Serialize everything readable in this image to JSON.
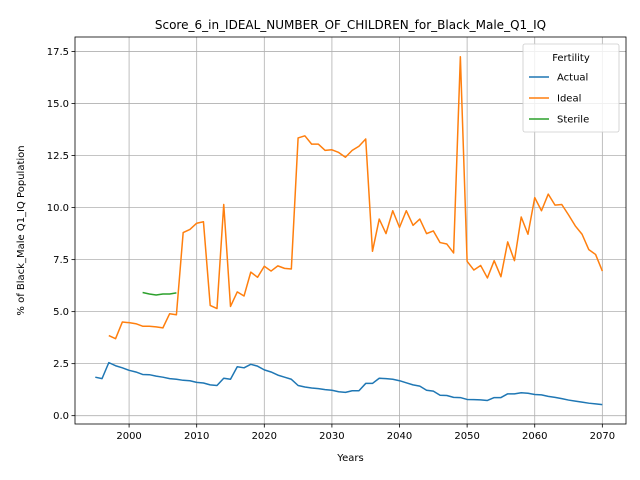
{
  "chart_data": {
    "type": "line",
    "title": "Score_6_in_IDEAL_NUMBER_OF_CHILDREN_for_Black_Male_Q1_IQ",
    "xlabel": "Years",
    "ylabel": "% of Black_Male Q1_IQ Population",
    "xlim": [
      1992,
      2073.5
    ],
    "ylim": [
      -0.4,
      18.2
    ],
    "xticks": [
      2000,
      2010,
      2020,
      2030,
      2040,
      2050,
      2060,
      2070
    ],
    "yticks": [
      0.0,
      2.5,
      5.0,
      7.5,
      10.0,
      12.5,
      15.0,
      17.5
    ],
    "xtick_labels": [
      "2000",
      "2010",
      "2020",
      "2030",
      "2040",
      "2050",
      "2060",
      "2070"
    ],
    "ytick_labels": [
      "0.0",
      "2.5",
      "5.0",
      "7.5",
      "10.0",
      "12.5",
      "15.0",
      "17.5"
    ],
    "grid": true,
    "legend": {
      "title": "Fertility",
      "placement": "top-right"
    },
    "series": [
      {
        "name": "Actual",
        "color": "#1f77b4",
        "points": [
          [
            1995,
            1.85
          ],
          [
            1996,
            1.78
          ],
          [
            1997,
            2.55
          ],
          [
            1998,
            2.4
          ],
          [
            1999,
            2.3
          ],
          [
            2000,
            2.18
          ],
          [
            2001,
            2.1
          ],
          [
            2002,
            1.98
          ],
          [
            2003,
            1.97
          ],
          [
            2004,
            1.9
          ],
          [
            2005,
            1.85
          ],
          [
            2006,
            1.78
          ],
          [
            2007,
            1.75
          ],
          [
            2008,
            1.7
          ],
          [
            2009,
            1.68
          ],
          [
            2010,
            1.6
          ],
          [
            2011,
            1.57
          ],
          [
            2012,
            1.48
          ],
          [
            2013,
            1.45
          ],
          [
            2014,
            1.8
          ],
          [
            2015,
            1.75
          ],
          [
            2016,
            2.35
          ],
          [
            2017,
            2.3
          ],
          [
            2018,
            2.47
          ],
          [
            2019,
            2.38
          ],
          [
            2020,
            2.2
          ],
          [
            2021,
            2.1
          ],
          [
            2022,
            1.95
          ],
          [
            2023,
            1.85
          ],
          [
            2024,
            1.75
          ],
          [
            2025,
            1.45
          ],
          [
            2026,
            1.38
          ],
          [
            2027,
            1.33
          ],
          [
            2028,
            1.3
          ],
          [
            2029,
            1.25
          ],
          [
            2030,
            1.22
          ],
          [
            2031,
            1.15
          ],
          [
            2032,
            1.12
          ],
          [
            2033,
            1.2
          ],
          [
            2034,
            1.2
          ],
          [
            2035,
            1.55
          ],
          [
            2036,
            1.55
          ],
          [
            2037,
            1.8
          ],
          [
            2038,
            1.78
          ],
          [
            2039,
            1.75
          ],
          [
            2040,
            1.68
          ],
          [
            2041,
            1.58
          ],
          [
            2042,
            1.48
          ],
          [
            2043,
            1.42
          ],
          [
            2044,
            1.22
          ],
          [
            2045,
            1.18
          ],
          [
            2046,
            0.98
          ],
          [
            2047,
            0.97
          ],
          [
            2048,
            0.88
          ],
          [
            2049,
            0.87
          ],
          [
            2050,
            0.78
          ],
          [
            2051,
            0.77
          ],
          [
            2052,
            0.76
          ],
          [
            2053,
            0.73
          ],
          [
            2054,
            0.87
          ],
          [
            2055,
            0.87
          ],
          [
            2056,
            1.05
          ],
          [
            2057,
            1.05
          ],
          [
            2058,
            1.1
          ],
          [
            2059,
            1.08
          ],
          [
            2060,
            1.02
          ],
          [
            2061,
            1.0
          ],
          [
            2062,
            0.93
          ],
          [
            2063,
            0.88
          ],
          [
            2064,
            0.82
          ],
          [
            2065,
            0.75
          ],
          [
            2066,
            0.7
          ],
          [
            2067,
            0.65
          ],
          [
            2068,
            0.6
          ],
          [
            2069,
            0.57
          ],
          [
            2070,
            0.53
          ]
        ]
      },
      {
        "name": "Ideal",
        "color": "#ff7f0e",
        "points": [
          [
            1997,
            3.85
          ],
          [
            1998,
            3.7
          ],
          [
            1999,
            4.5
          ],
          [
            2000,
            4.47
          ],
          [
            2001,
            4.42
          ],
          [
            2002,
            4.3
          ],
          [
            2003,
            4.3
          ],
          [
            2004,
            4.27
          ],
          [
            2005,
            4.22
          ],
          [
            2006,
            4.9
          ],
          [
            2007,
            4.85
          ],
          [
            2008,
            8.8
          ],
          [
            2009,
            8.95
          ],
          [
            2010,
            9.25
          ],
          [
            2011,
            9.32
          ],
          [
            2012,
            5.3
          ],
          [
            2013,
            5.15
          ],
          [
            2014,
            10.15
          ],
          [
            2015,
            5.25
          ],
          [
            2016,
            5.95
          ],
          [
            2017,
            5.75
          ],
          [
            2018,
            6.9
          ],
          [
            2019,
            6.65
          ],
          [
            2020,
            7.18
          ],
          [
            2021,
            6.95
          ],
          [
            2022,
            7.2
          ],
          [
            2023,
            7.08
          ],
          [
            2024,
            7.05
          ],
          [
            2025,
            13.35
          ],
          [
            2026,
            13.45
          ],
          [
            2027,
            13.05
          ],
          [
            2028,
            13.05
          ],
          [
            2029,
            12.75
          ],
          [
            2030,
            12.78
          ],
          [
            2031,
            12.65
          ],
          [
            2032,
            12.42
          ],
          [
            2033,
            12.75
          ],
          [
            2034,
            12.95
          ],
          [
            2035,
            13.3
          ],
          [
            2036,
            7.9
          ],
          [
            2037,
            9.45
          ],
          [
            2038,
            8.75
          ],
          [
            2039,
            9.85
          ],
          [
            2040,
            9.05
          ],
          [
            2041,
            9.85
          ],
          [
            2042,
            9.15
          ],
          [
            2043,
            9.45
          ],
          [
            2044,
            8.75
          ],
          [
            2045,
            8.88
          ],
          [
            2046,
            8.32
          ],
          [
            2047,
            8.25
          ],
          [
            2048,
            7.82
          ],
          [
            2049,
            17.25
          ],
          [
            2050,
            7.42
          ],
          [
            2051,
            7.0
          ],
          [
            2052,
            7.22
          ],
          [
            2053,
            6.62
          ],
          [
            2054,
            7.45
          ],
          [
            2055,
            6.68
          ],
          [
            2056,
            8.35
          ],
          [
            2057,
            7.45
          ],
          [
            2058,
            9.55
          ],
          [
            2059,
            8.72
          ],
          [
            2060,
            10.48
          ],
          [
            2061,
            9.85
          ],
          [
            2062,
            10.65
          ],
          [
            2063,
            10.12
          ],
          [
            2064,
            10.15
          ],
          [
            2065,
            9.65
          ],
          [
            2066,
            9.12
          ],
          [
            2067,
            8.72
          ],
          [
            2068,
            7.98
          ],
          [
            2069,
            7.75
          ],
          [
            2070,
            6.95
          ]
        ]
      },
      {
        "name": "Sterile",
        "color": "#2ca02c",
        "points": [
          [
            2002,
            5.92
          ],
          [
            2003,
            5.85
          ],
          [
            2004,
            5.8
          ],
          [
            2005,
            5.85
          ],
          [
            2006,
            5.85
          ],
          [
            2007,
            5.9
          ]
        ]
      }
    ]
  }
}
